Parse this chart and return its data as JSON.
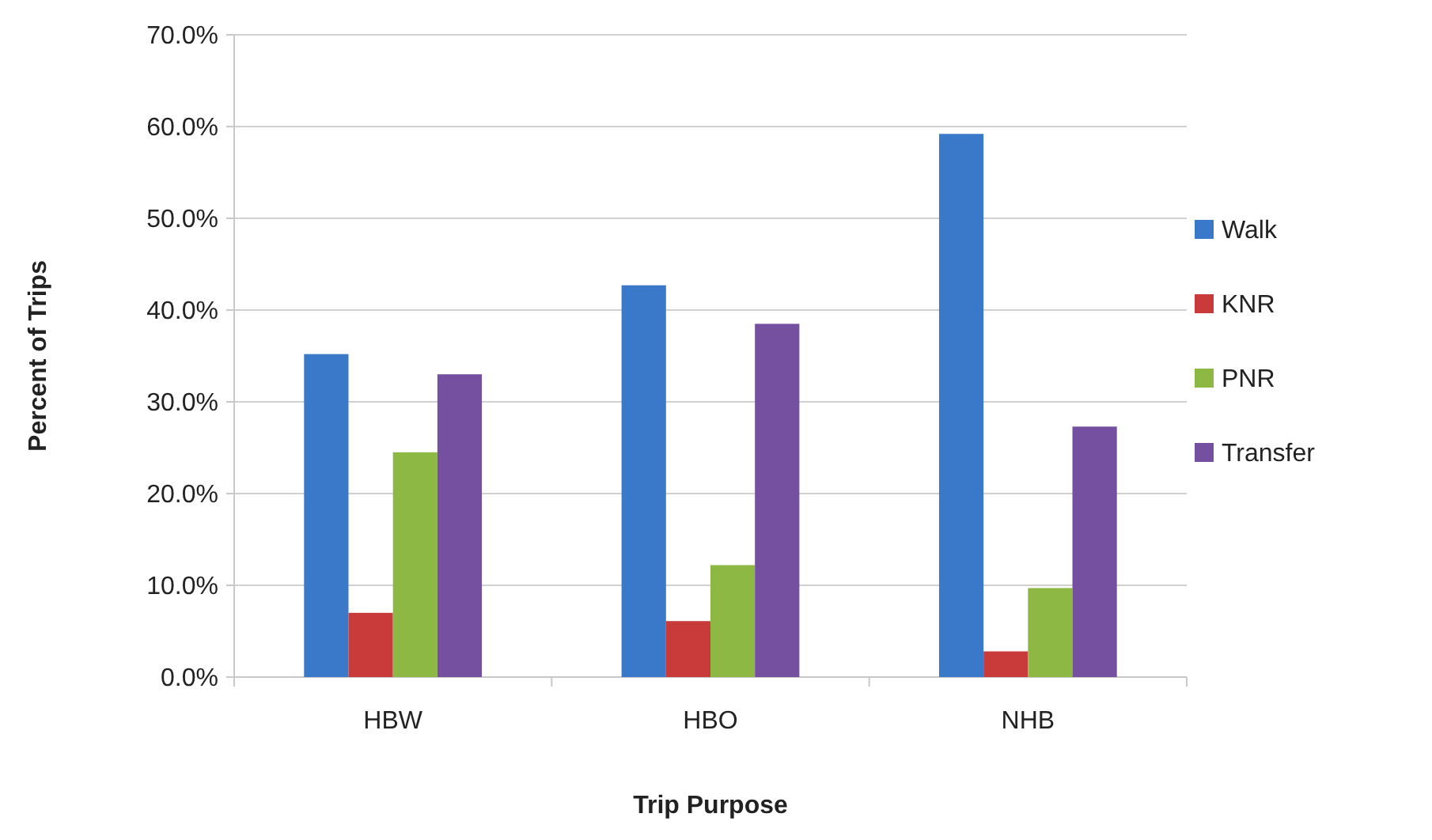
{
  "chart_data": {
    "type": "bar",
    "xlabel": "Trip Purpose",
    "ylabel": "Percent of Trips",
    "categories": [
      "HBW",
      "HBO",
      "NHB"
    ],
    "series": [
      {
        "name": "Walk",
        "color": "#3a78c9",
        "values": [
          35.2,
          42.7,
          59.2
        ]
      },
      {
        "name": "KNR",
        "color": "#c93a3a",
        "values": [
          7.0,
          6.1,
          2.8
        ]
      },
      {
        "name": "PNR",
        "color": "#8db843",
        "values": [
          24.5,
          12.2,
          9.7
        ]
      },
      {
        "name": "Transfer",
        "color": "#7550a0",
        "values": [
          33.0,
          38.5,
          27.3
        ]
      }
    ],
    "ylim": [
      0,
      70
    ],
    "yticks": [
      {
        "value": 0,
        "label": "0.0%"
      },
      {
        "value": 10,
        "label": "10.0%"
      },
      {
        "value": 20,
        "label": "20.0%"
      },
      {
        "value": 30,
        "label": "30.0%"
      },
      {
        "value": 40,
        "label": "40.0%"
      },
      {
        "value": 50,
        "label": "50.0%"
      },
      {
        "value": 60,
        "label": "60.0%"
      },
      {
        "value": 70,
        "label": "70.0%"
      }
    ],
    "grid": "y",
    "legend": "right"
  }
}
